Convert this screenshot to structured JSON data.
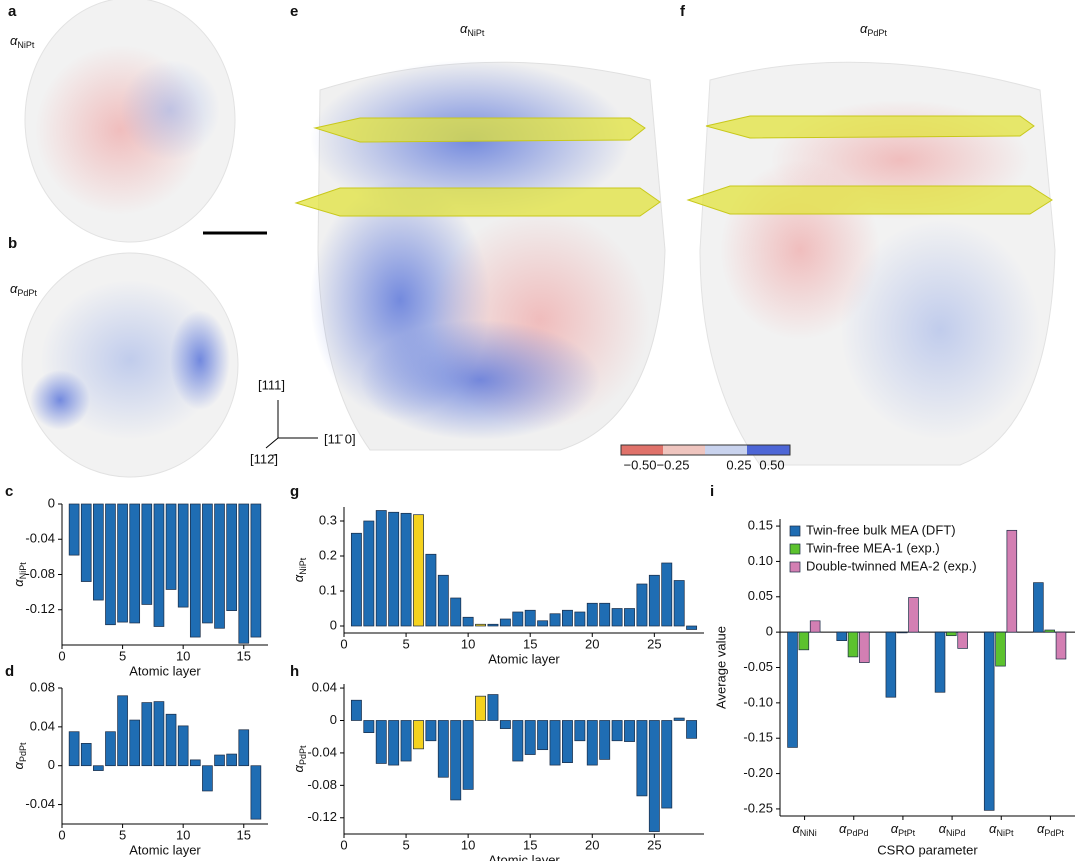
{
  "images": [
    {
      "letter": "a",
      "symbol": "α",
      "subscript": "NiPt"
    },
    {
      "letter": "b",
      "symbol": "α",
      "subscript": "PdPt"
    },
    {
      "letter": "e",
      "symbol": "α",
      "subscript": "NiPt"
    },
    {
      "letter": "f",
      "symbol": "α",
      "subscript": "PdPt"
    }
  ],
  "directions": [
    "[111]",
    "[11̄ 0]",
    "[112̄]"
  ],
  "colorbar": {
    "ticks": [
      {
        "value": -0.5,
        "label": "−0.50"
      },
      {
        "value": -0.25,
        "label": "−0.25"
      },
      {
        "value": 0.25,
        "label": "0.25"
      },
      {
        "value": 0.5,
        "label": "0.50"
      }
    ]
  },
  "chart_data": [
    {
      "type": "bar",
      "panel": "c",
      "y_symbol": "α",
      "y_subscript": "NiPt",
      "x_label": "Atomic layer",
      "color": "#1f6db3",
      "x": [
        1,
        2,
        3,
        4,
        5,
        6,
        7,
        8,
        9,
        10,
        11,
        12,
        13,
        14,
        15,
        16
      ],
      "values": [
        -0.058,
        -0.088,
        -0.109,
        -0.137,
        -0.134,
        -0.135,
        -0.114,
        -0.139,
        -0.097,
        -0.117,
        -0.151,
        -0.135,
        -0.141,
        -0.121,
        -0.158,
        -0.151
      ],
      "xlim": [
        0,
        17
      ],
      "xticks": [
        0,
        5,
        10,
        15
      ],
      "ylim": [
        -0.16,
        0
      ],
      "yticks": [
        0,
        -0.04,
        -0.08,
        -0.12
      ]
    },
    {
      "type": "bar",
      "panel": "d",
      "y_symbol": "α",
      "y_subscript": "PdPt",
      "x_label": "Atomic layer",
      "color": "#1f6db3",
      "x": [
        1,
        2,
        3,
        4,
        5,
        6,
        7,
        8,
        9,
        10,
        11,
        12,
        13,
        14,
        15,
        16
      ],
      "values": [
        0.035,
        0.023,
        -0.005,
        0.035,
        0.072,
        0.047,
        0.065,
        0.066,
        0.053,
        0.041,
        0.006,
        -0.026,
        0.011,
        0.012,
        0.037,
        -0.055
      ],
      "xlim": [
        0,
        17
      ],
      "xticks": [
        0,
        5,
        10,
        15
      ],
      "ylim": [
        -0.06,
        0.08
      ],
      "yticks": [
        0.08,
        0.04,
        0,
        -0.04
      ]
    },
    {
      "type": "bar",
      "panel": "g",
      "y_symbol": "α",
      "y_subscript": "NiPt",
      "x_label": "Atomic layer",
      "x": [
        1,
        2,
        3,
        4,
        5,
        6,
        7,
        8,
        9,
        10,
        11,
        12,
        13,
        14,
        15,
        16,
        17,
        18,
        19,
        20,
        21,
        22,
        23,
        24,
        25,
        26,
        27,
        28
      ],
      "values": [
        0.265,
        0.3,
        0.33,
        0.325,
        0.322,
        0.318,
        0.205,
        0.145,
        0.08,
        0.025,
        0.005,
        0.005,
        0.02,
        0.04,
        0.045,
        0.015,
        0.035,
        0.045,
        0.04,
        0.065,
        0.065,
        0.05,
        0.05,
        0.12,
        0.145,
        0.18,
        0.13,
        -0.01
      ],
      "colors": [
        "#1f6db3",
        "#1f6db3",
        "#1f6db3",
        "#1f6db3",
        "#1f6db3",
        "#f5d21e",
        "#1f6db3",
        "#1f6db3",
        "#1f6db3",
        "#1f6db3",
        "#f5d21e",
        "#1f6db3",
        "#1f6db3",
        "#1f6db3",
        "#1f6db3",
        "#1f6db3",
        "#1f6db3",
        "#1f6db3",
        "#1f6db3",
        "#1f6db3",
        "#1f6db3",
        "#1f6db3",
        "#1f6db3",
        "#1f6db3",
        "#1f6db3",
        "#1f6db3",
        "#1f6db3",
        "#1f6db3"
      ],
      "xlim": [
        0,
        29
      ],
      "xticks": [
        0,
        5,
        10,
        15,
        20,
        25
      ],
      "ylim": [
        -0.02,
        0.34
      ],
      "yticks": [
        0,
        {
          "value": 0.1,
          "label": "0.1"
        },
        {
          "value": 0.2,
          "label": "0.2"
        },
        {
          "value": 0.3,
          "label": "0.3"
        }
      ]
    },
    {
      "type": "bar",
      "panel": "h",
      "y_symbol": "α",
      "y_subscript": "PdPt",
      "x_label": "Atomic layer",
      "x": [
        1,
        2,
        3,
        4,
        5,
        6,
        7,
        8,
        9,
        10,
        11,
        12,
        13,
        14,
        15,
        16,
        17,
        18,
        19,
        20,
        21,
        22,
        23,
        24,
        25,
        26,
        27,
        28
      ],
      "values": [
        0.025,
        -0.015,
        -0.053,
        -0.055,
        -0.05,
        -0.035,
        -0.025,
        -0.07,
        -0.098,
        -0.085,
        0.03,
        0.032,
        -0.01,
        -0.05,
        -0.042,
        -0.036,
        -0.055,
        -0.052,
        -0.025,
        -0.055,
        -0.048,
        -0.025,
        -0.026,
        -0.093,
        -0.137,
        -0.108,
        0.003,
        -0.022
      ],
      "colors": [
        "#1f6db3",
        "#1f6db3",
        "#1f6db3",
        "#1f6db3",
        "#1f6db3",
        "#f5d21e",
        "#1f6db3",
        "#1f6db3",
        "#1f6db3",
        "#1f6db3",
        "#f5d21e",
        "#1f6db3",
        "#1f6db3",
        "#1f6db3",
        "#1f6db3",
        "#1f6db3",
        "#1f6db3",
        "#1f6db3",
        "#1f6db3",
        "#1f6db3",
        "#1f6db3",
        "#1f6db3",
        "#1f6db3",
        "#1f6db3",
        "#1f6db3",
        "#1f6db3",
        "#1f6db3",
        "#1f6db3"
      ],
      "xlim": [
        0,
        29
      ],
      "xticks": [
        0,
        5,
        10,
        15,
        20,
        25
      ],
      "ylim": [
        -0.14,
        0.045
      ],
      "yticks": [
        0.04,
        0,
        -0.04,
        -0.08,
        -0.12
      ]
    },
    {
      "type": "grouped_bar",
      "panel": "i",
      "y_label": "Average value",
      "x_label": "CSRO parameter",
      "category_symbol": "α",
      "categories": [
        "NiNi",
        "PdPd",
        "PtPt",
        "NiPd",
        "NiPt",
        "PdPt"
      ],
      "series": [
        {
          "name": "Twin-free bulk MEA (DFT)",
          "color": "#1f6db3",
          "values": [
            -0.163,
            -0.012,
            -0.092,
            -0.085,
            -0.252,
            0.07
          ]
        },
        {
          "name": "Twin-free MEA-1 (exp.)",
          "color": "#5cc22e",
          "values": [
            -0.025,
            -0.035,
            -0.001,
            -0.005,
            -0.048,
            0.003
          ]
        },
        {
          "name": "Double-twinned MEA-2 (exp.)",
          "color": "#d37fb3",
          "values": [
            0.016,
            -0.043,
            0.049,
            -0.023,
            0.144,
            -0.038
          ]
        }
      ],
      "ylim": [
        -0.26,
        0.16
      ],
      "yticks": [
        0.15,
        {
          "value": 0.1,
          "label": "0.10"
        },
        0.05,
        0,
        -0.05,
        {
          "value": -0.1,
          "label": "-0.10"
        },
        -0.15,
        {
          "value": -0.2,
          "label": "-0.20"
        },
        -0.25
      ],
      "legend": "upper left"
    }
  ]
}
